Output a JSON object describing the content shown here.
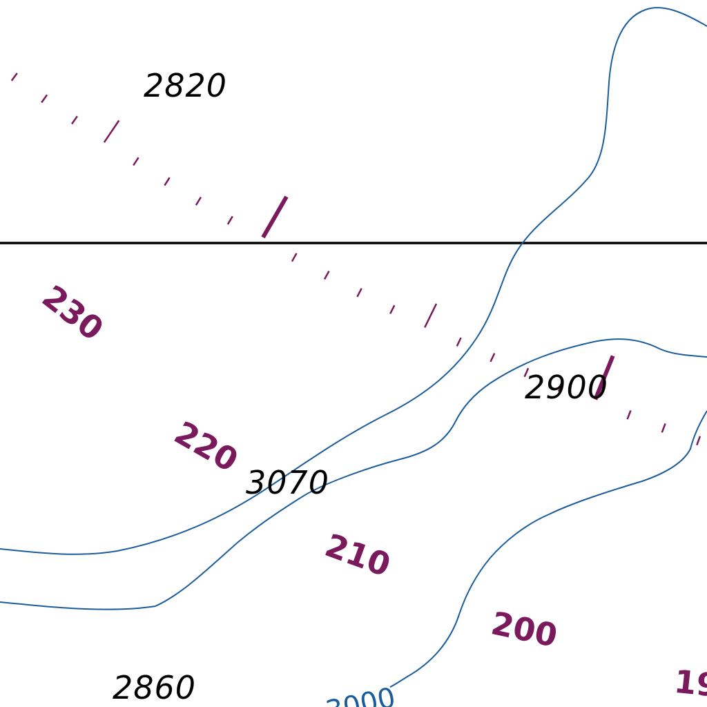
{
  "colors": {
    "background": "#ffffff",
    "contour": "#1a5c9c",
    "compass": "#7a1a5c",
    "sounding": "#000000",
    "boundary_line": "#000000"
  },
  "soundings": [
    {
      "id": "s2820",
      "value": "2820"
    },
    {
      "id": "s2900",
      "value": "2900"
    },
    {
      "id": "s3070",
      "value": "3070"
    },
    {
      "id": "s2860",
      "value": "2860"
    }
  ],
  "compass_labels": [
    {
      "id": "c230",
      "value": "230"
    },
    {
      "id": "c220",
      "value": "220"
    },
    {
      "id": "c210",
      "value": "210"
    },
    {
      "id": "c200",
      "value": "200"
    },
    {
      "id": "c190",
      "value": "19"
    }
  ],
  "contour_label": "3000"
}
